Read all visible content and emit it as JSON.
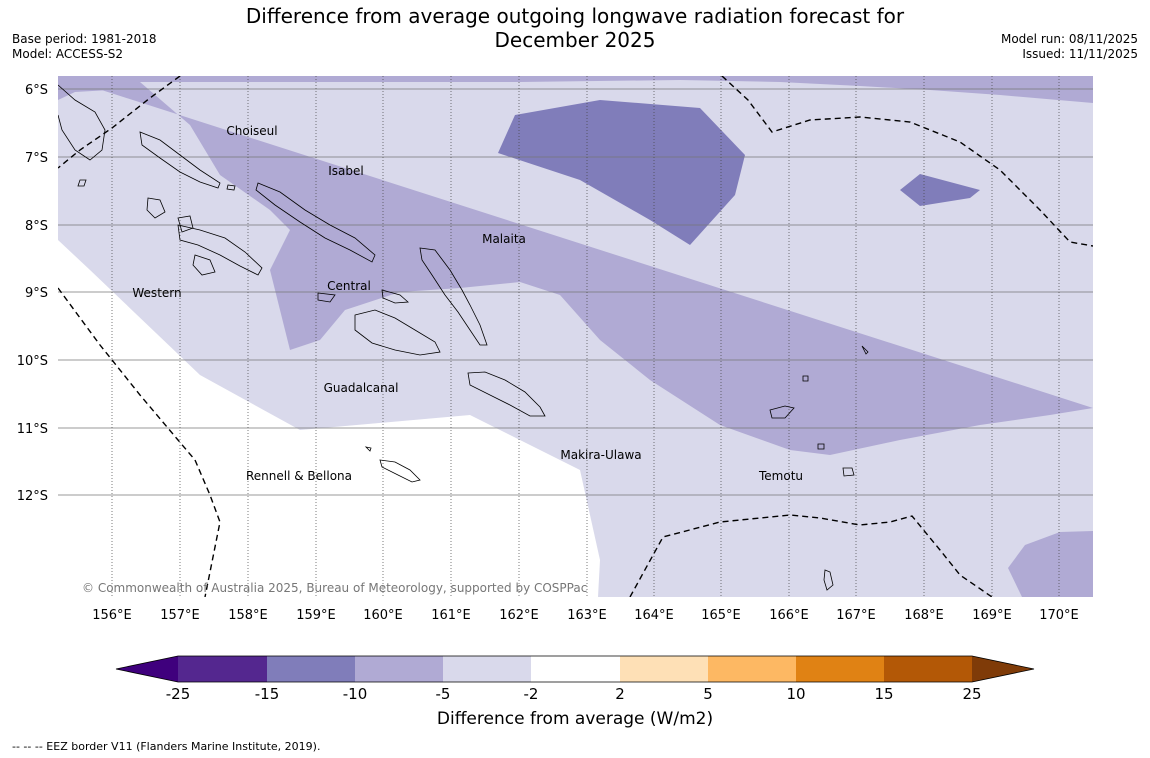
{
  "header": {
    "title_line1": "Difference from average outgoing longwave radiation forecast for",
    "title_line2": "December 2025",
    "base_period": "Base period: 1981-2018",
    "model": "Model: ACCESS-S2",
    "model_run": "Model run: 08/11/2025",
    "issued": "Issued: 11/11/2025"
  },
  "map": {
    "lat_labels": [
      "6°S",
      "7°S",
      "8°S",
      "9°S",
      "10°S",
      "11°S",
      "12°S"
    ],
    "lon_labels": [
      "156°E",
      "157°E",
      "158°E",
      "159°E",
      "160°E",
      "161°E",
      "162°E",
      "163°E",
      "164°E",
      "165°E",
      "166°E",
      "167°E",
      "168°E",
      "169°E",
      "170°E"
    ],
    "provinces": [
      "Choiseul",
      "Isabel",
      "Malaita",
      "Central",
      "Western",
      "Guadalcanal",
      "Makira-Ulawa",
      "Rennell & Bellona",
      "Temotu"
    ],
    "copyright": "© Commonwealth of Australia 2025, Bureau of Meteorology, supported by COSPPac"
  },
  "legend": {
    "tick_labels": [
      "-25",
      "-15",
      "-10",
      "-5",
      "-2",
      "2",
      "5",
      "10",
      "15",
      "25"
    ],
    "colors": [
      "#3f007d",
      "#54278f",
      "#807dba",
      "#b0aad4",
      "#d9d9eb",
      "#ffffff",
      "#fee0b6",
      "#fdb863",
      "#e08214",
      "#b35806",
      "#7f3b08"
    ],
    "title": "Difference from average (W/m2)"
  },
  "footnote": "--  --  -- EEZ border V11 (Flanders Marine Institute, 2019)."
}
